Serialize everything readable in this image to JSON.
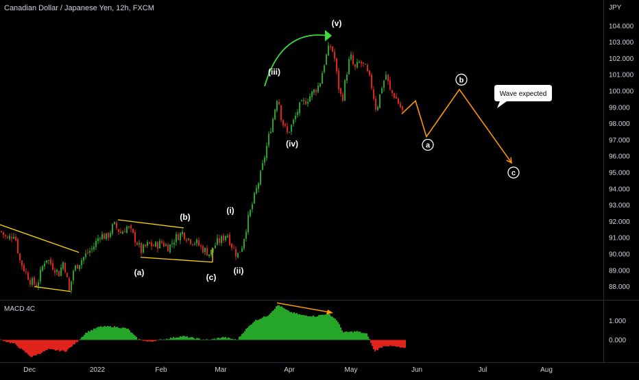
{
  "title": "Canadian Dollar / Japanese Yen, 12h, FXCM",
  "chart_data": {
    "type": "candlestick",
    "ylabel": "JPY",
    "ylim": [
      87.1,
      105.0
    ],
    "y_ticks": [
      "104.000",
      "103.000",
      "102.000",
      "101.000",
      "100.000",
      "99.000",
      "98.000",
      "97.000",
      "96.000",
      "95.000",
      "94.000",
      "93.000",
      "92.000",
      "91.000",
      "90.000",
      "89.000",
      "88.000"
    ],
    "x_ticks": [
      "Dec",
      "2022",
      "Feb",
      "Mar",
      "Apr",
      "May",
      "Jun",
      "Jul",
      "Aug"
    ],
    "price_path": [
      {
        "x": 0,
        "y": 91.4
      },
      {
        "x": 10,
        "y": 90.9
      },
      {
        "x": 20,
        "y": 91.3
      },
      {
        "x": 28,
        "y": 89.6
      },
      {
        "x": 35,
        "y": 89.0
      },
      {
        "x": 44,
        "y": 88.3
      },
      {
        "x": 53,
        "y": 88.1
      },
      {
        "x": 60,
        "y": 89.1
      },
      {
        "x": 66,
        "y": 89.8
      },
      {
        "x": 75,
        "y": 89.3
      },
      {
        "x": 85,
        "y": 88.8
      },
      {
        "x": 92,
        "y": 89.6
      },
      {
        "x": 100,
        "y": 87.7
      },
      {
        "x": 106,
        "y": 89.0
      },
      {
        "x": 115,
        "y": 89.5
      },
      {
        "x": 125,
        "y": 90.0
      },
      {
        "x": 135,
        "y": 90.4
      },
      {
        "x": 145,
        "y": 91.2
      },
      {
        "x": 155,
        "y": 91.0
      },
      {
        "x": 165,
        "y": 91.8
      },
      {
        "x": 175,
        "y": 91.3
      },
      {
        "x": 185,
        "y": 91.7
      },
      {
        "x": 195,
        "y": 91.0
      },
      {
        "x": 205,
        "y": 90.2
      },
      {
        "x": 215,
        "y": 90.6
      },
      {
        "x": 225,
        "y": 90.5
      },
      {
        "x": 235,
        "y": 90.7
      },
      {
        "x": 245,
        "y": 90.4
      },
      {
        "x": 255,
        "y": 91.0
      },
      {
        "x": 265,
        "y": 91.3
      },
      {
        "x": 275,
        "y": 90.9
      },
      {
        "x": 285,
        "y": 90.7
      },
      {
        "x": 295,
        "y": 90.3
      },
      {
        "x": 305,
        "y": 90.0
      },
      {
        "x": 315,
        "y": 90.7
      },
      {
        "x": 323,
        "y": 90.9
      },
      {
        "x": 330,
        "y": 91.3
      },
      {
        "x": 336,
        "y": 90.6
      },
      {
        "x": 345,
        "y": 89.9
      },
      {
        "x": 352,
        "y": 90.5
      },
      {
        "x": 360,
        "y": 92.0
      },
      {
        "x": 370,
        "y": 93.5
      },
      {
        "x": 380,
        "y": 95.0
      },
      {
        "x": 390,
        "y": 97.0
      },
      {
        "x": 398,
        "y": 98.5
      },
      {
        "x": 404,
        "y": 99.8
      },
      {
        "x": 410,
        "y": 98.2
      },
      {
        "x": 418,
        "y": 97.4
      },
      {
        "x": 426,
        "y": 98.0
      },
      {
        "x": 435,
        "y": 99.0
      },
      {
        "x": 445,
        "y": 99.4
      },
      {
        "x": 455,
        "y": 99.9
      },
      {
        "x": 465,
        "y": 100.4
      },
      {
        "x": 473,
        "y": 101.9
      },
      {
        "x": 480,
        "y": 102.8
      },
      {
        "x": 486,
        "y": 102.3
      },
      {
        "x": 492,
        "y": 100.4
      },
      {
        "x": 498,
        "y": 99.4
      },
      {
        "x": 504,
        "y": 101.0
      },
      {
        "x": 510,
        "y": 102.2
      },
      {
        "x": 516,
        "y": 101.3
      },
      {
        "x": 524,
        "y": 101.8
      },
      {
        "x": 532,
        "y": 101.4
      },
      {
        "x": 540,
        "y": 100.5
      },
      {
        "x": 548,
        "y": 98.8
      },
      {
        "x": 556,
        "y": 100.3
      },
      {
        "x": 562,
        "y": 101.0
      },
      {
        "x": 568,
        "y": 100.0
      },
      {
        "x": 575,
        "y": 99.7
      },
      {
        "x": 582,
        "y": 99.1
      },
      {
        "x": 588,
        "y": 98.6
      }
    ],
    "projection": [
      {
        "x": 586,
        "y": 98.6
      },
      {
        "x": 606,
        "y": 99.4
      },
      {
        "x": 622,
        "y": 97.2
      },
      {
        "x": 670,
        "y": 100.1
      },
      {
        "x": 746,
        "y": 95.6
      }
    ],
    "macd": {
      "label": "MACD 4C",
      "ylim": [
        -1.1,
        2.0
      ],
      "y_ticks": [
        "1.000",
        "0.000"
      ],
      "points": [
        {
          "x": 0,
          "y": 0.0
        },
        {
          "x": 20,
          "y": -0.2
        },
        {
          "x": 45,
          "y": -0.9
        },
        {
          "x": 70,
          "y": -0.5
        },
        {
          "x": 95,
          "y": -0.6
        },
        {
          "x": 110,
          "y": -0.15
        },
        {
          "x": 125,
          "y": 0.4
        },
        {
          "x": 145,
          "y": 0.7
        },
        {
          "x": 165,
          "y": 0.7
        },
        {
          "x": 185,
          "y": 0.6
        },
        {
          "x": 200,
          "y": 0.05
        },
        {
          "x": 215,
          "y": -0.1
        },
        {
          "x": 240,
          "y": 0.05
        },
        {
          "x": 265,
          "y": 0.2
        },
        {
          "x": 290,
          "y": 0.05
        },
        {
          "x": 305,
          "y": 0.0
        },
        {
          "x": 325,
          "y": 0.15
        },
        {
          "x": 345,
          "y": 0.0
        },
        {
          "x": 355,
          "y": 0.45
        },
        {
          "x": 370,
          "y": 1.0
        },
        {
          "x": 390,
          "y": 1.3
        },
        {
          "x": 405,
          "y": 1.85
        },
        {
          "x": 420,
          "y": 1.5
        },
        {
          "x": 440,
          "y": 1.3
        },
        {
          "x": 460,
          "y": 1.25
        },
        {
          "x": 478,
          "y": 1.4
        },
        {
          "x": 490,
          "y": 1.05
        },
        {
          "x": 500,
          "y": 0.4
        },
        {
          "x": 520,
          "y": 0.45
        },
        {
          "x": 535,
          "y": 0.3
        },
        {
          "x": 545,
          "y": -0.6
        },
        {
          "x": 560,
          "y": -0.3
        },
        {
          "x": 575,
          "y": -0.35
        },
        {
          "x": 590,
          "y": -0.45
        }
      ]
    },
    "annotations": [
      {
        "text": "(i)",
        "x": 336,
        "y": 92.5
      },
      {
        "text": "(ii)",
        "x": 348,
        "y": 88.8
      },
      {
        "text": "(iii)",
        "x": 400,
        "y": 101.0
      },
      {
        "text": "(iv)",
        "x": 426,
        "y": 96.6
      },
      {
        "text": "(v)",
        "x": 491,
        "y": 104.0
      },
      {
        "text": "(a)",
        "x": 203,
        "y": 88.7
      },
      {
        "text": "(b)",
        "x": 270,
        "y": 92.1
      },
      {
        "text": "(c)",
        "x": 308,
        "y": 88.4
      }
    ],
    "circled_labels": [
      {
        "text": "a",
        "x": 624,
        "y": 96.7
      },
      {
        "text": "b",
        "x": 673,
        "y": 100.7
      },
      {
        "text": "c",
        "x": 749,
        "y": 95.0
      }
    ],
    "callout": {
      "text": "Wave expected"
    },
    "colors": {
      "up": "#26a629",
      "down": "#e0241b",
      "projection": "#ff9800",
      "trendline": "#ffd700",
      "arc": "#3ddc3d"
    }
  }
}
